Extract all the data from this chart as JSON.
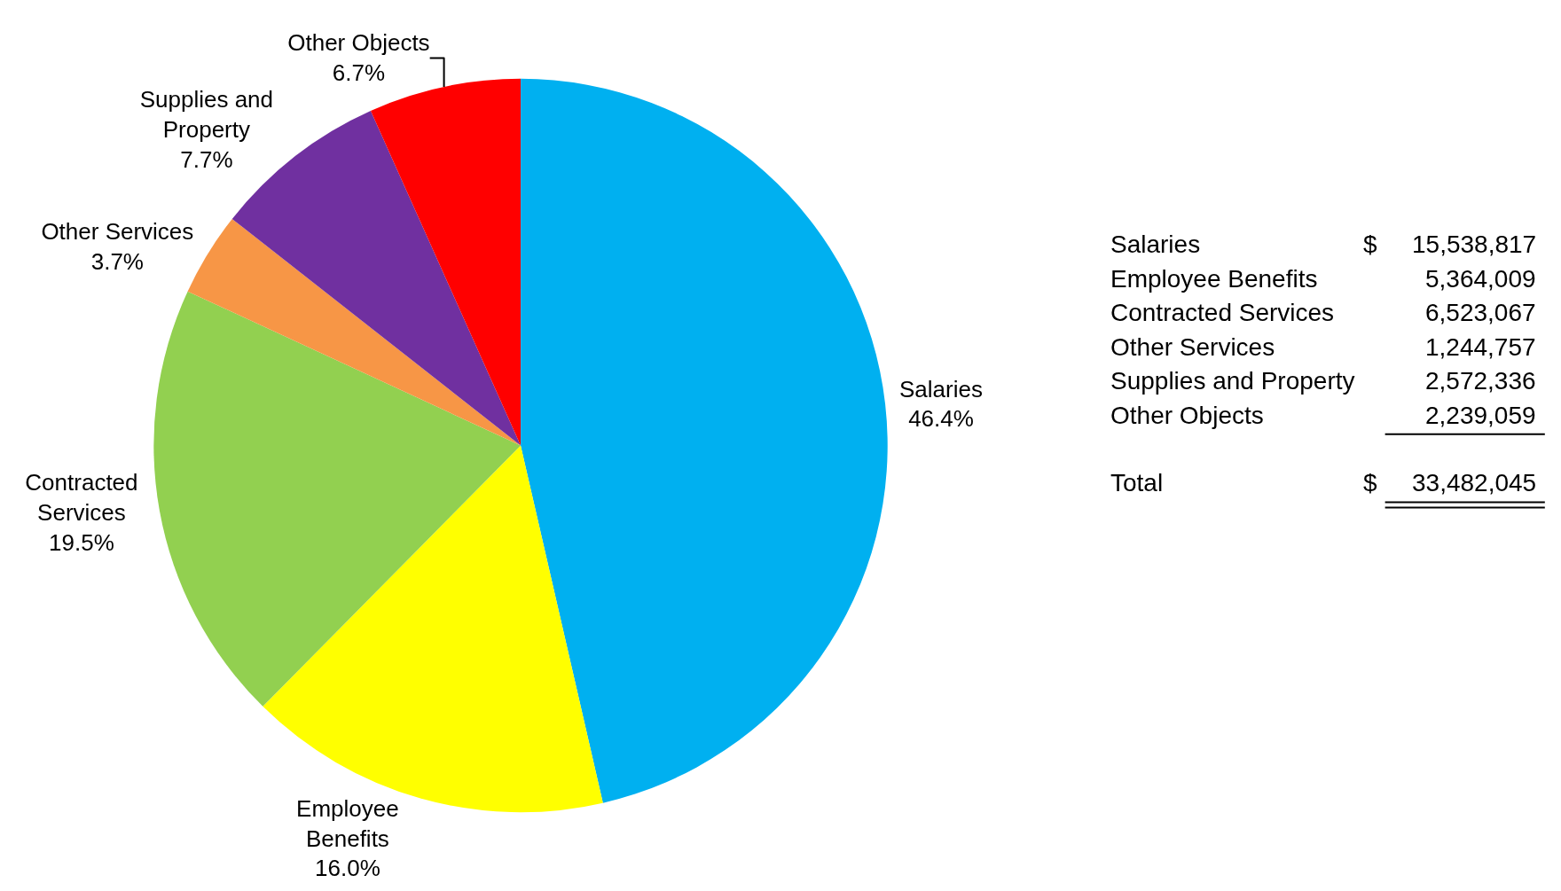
{
  "chart_data": [
    {
      "type": "pie",
      "categories": [
        "Salaries",
        "Employee Benefits",
        "Contracted Services",
        "Other Services",
        "Supplies and Property",
        "Other Objects"
      ],
      "values": [
        46.4,
        16.0,
        19.5,
        3.7,
        7.7,
        6.7
      ],
      "colors": [
        "#00b0f0",
        "#ffff00",
        "#92d050",
        "#f79646",
        "#7030a0",
        "#ff0000"
      ],
      "value_labels": [
        "46.4%",
        "16.0%",
        "19.5%",
        "3.7%",
        "7.7%",
        "6.7%"
      ]
    },
    {
      "type": "other",
      "categories": [
        "Salaries",
        "Employee Benefits",
        "Contracted Services",
        "Other Services",
        "Supplies and Property",
        "Other Objects"
      ],
      "value_labels": [
        "15,538,817",
        "5,364,009",
        "6,523,067",
        "1,244,757",
        "2,572,336",
        "2,239,059"
      ],
      "annotations": [
        "$",
        "Total",
        "$"
      ],
      "totals": [
        "33,482,045"
      ]
    }
  ]
}
